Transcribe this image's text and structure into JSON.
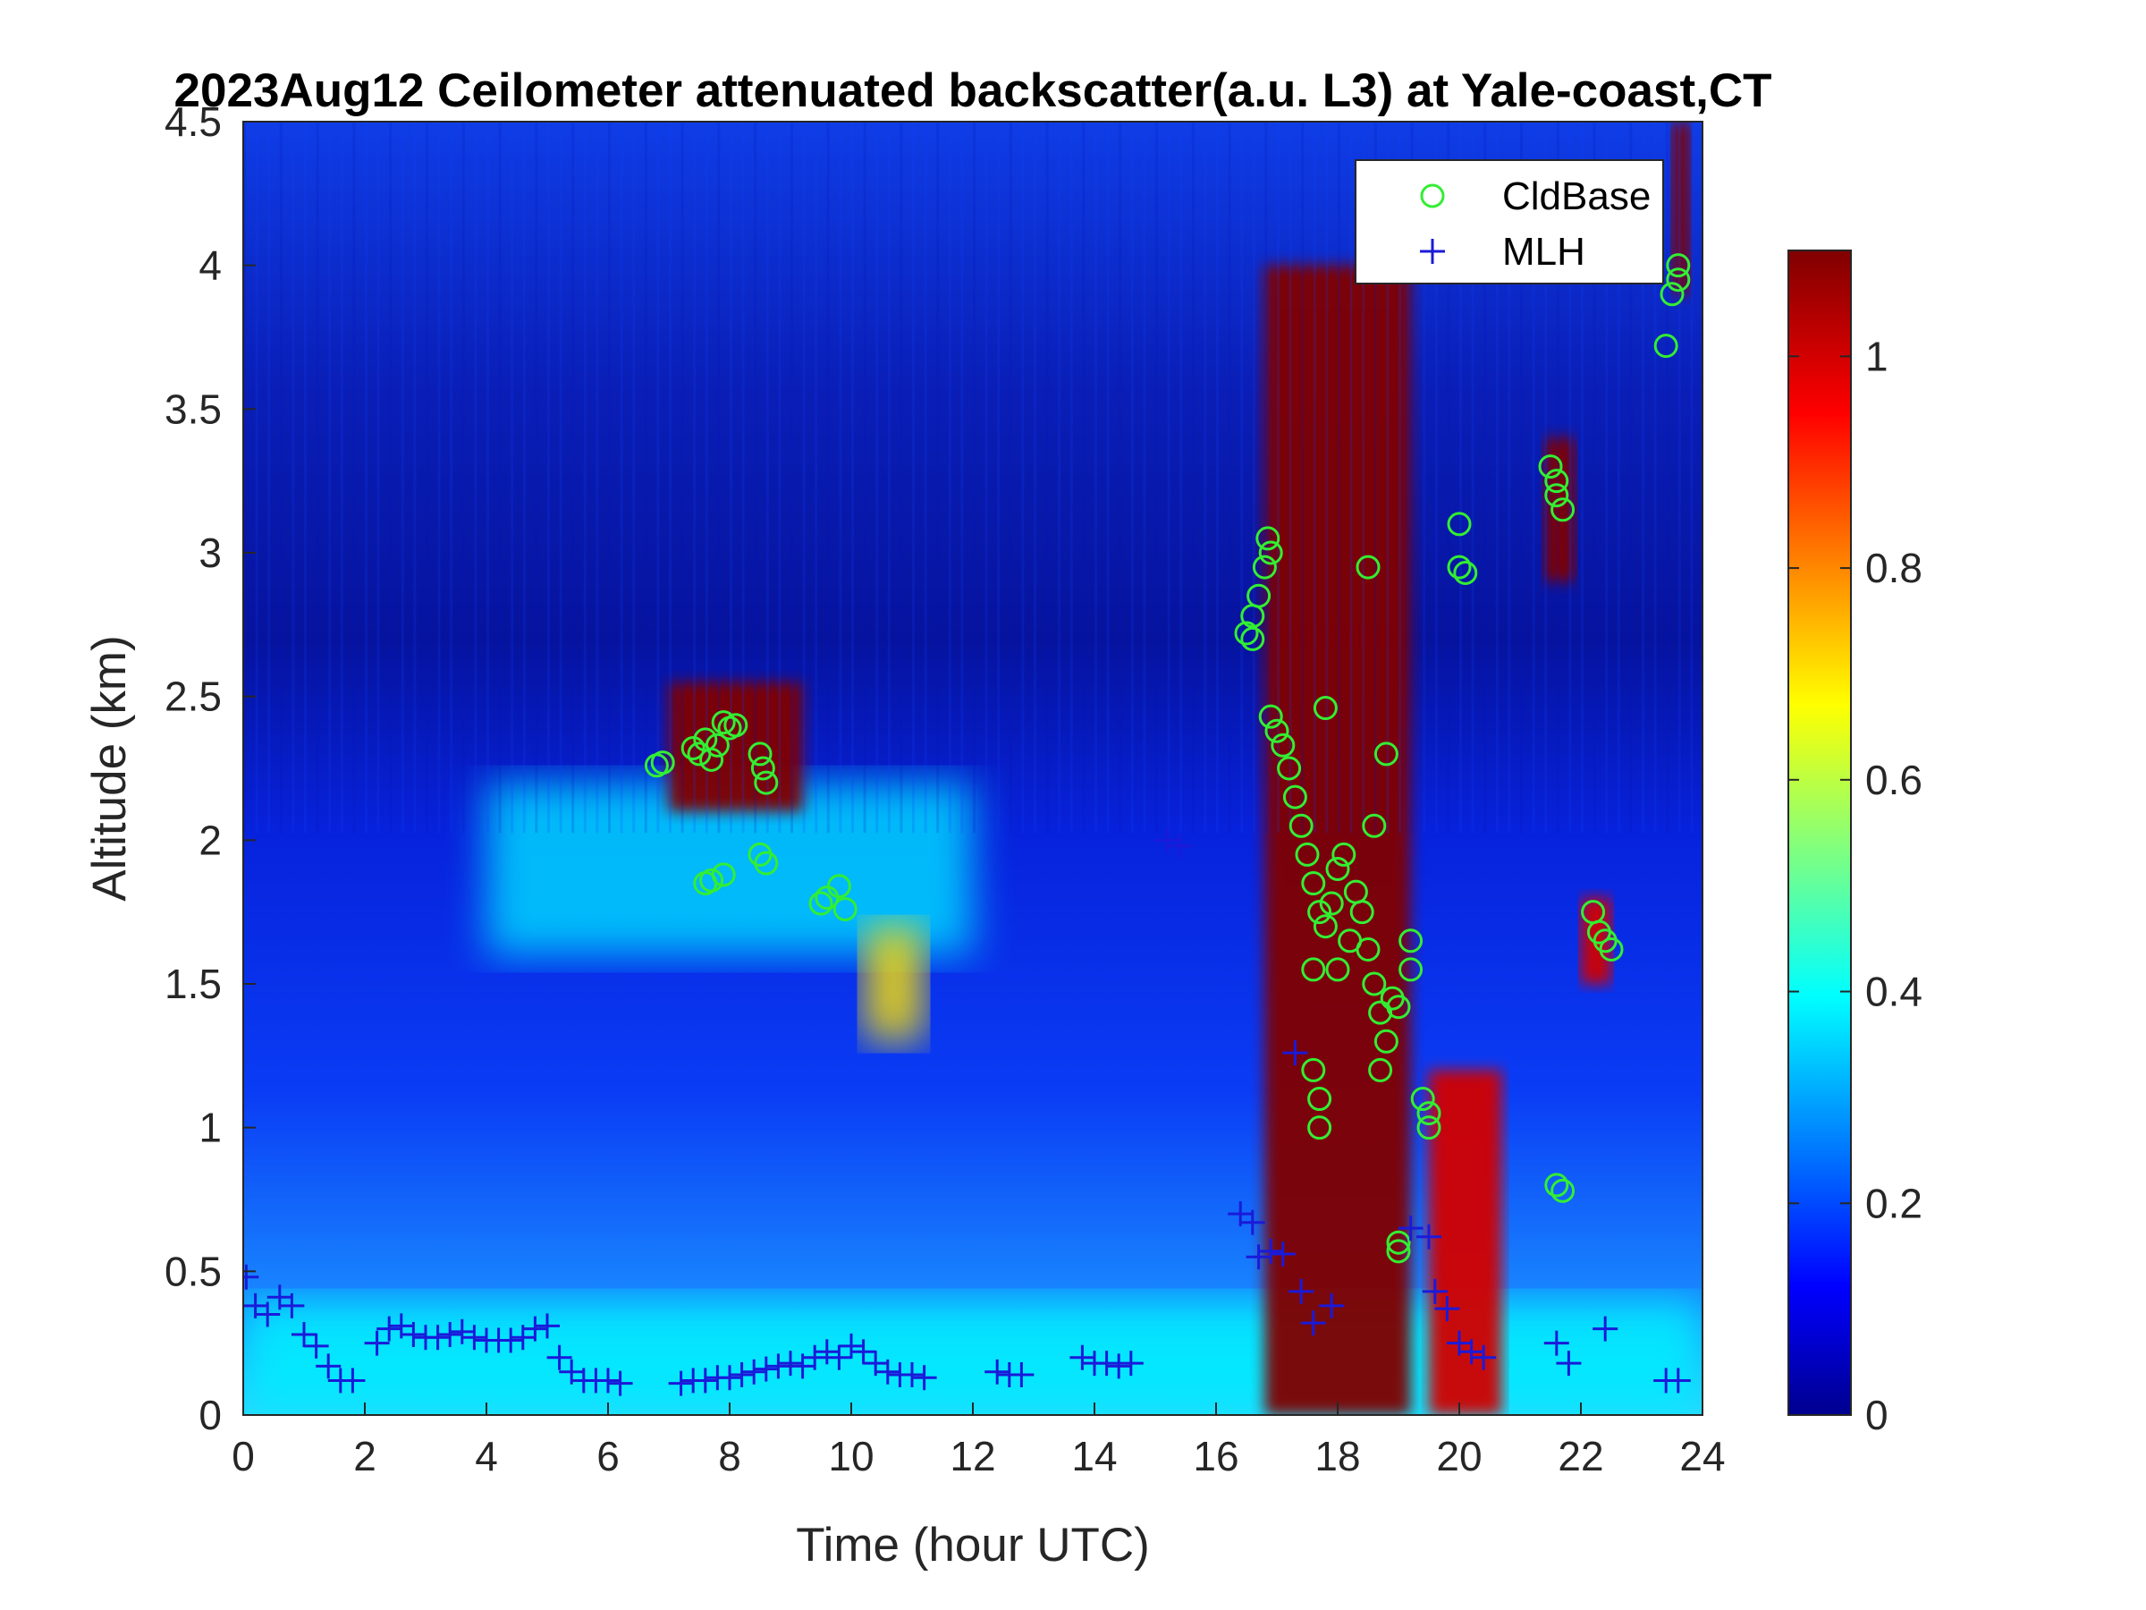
{
  "chart_data": {
    "type": "heatmap",
    "title": "2023Aug12 Ceilometer attenuated backscatter(a.u. L3) at Yale-coast,CT",
    "xlabel": "Time (hour UTC)",
    "ylabel": "Altitude (km)",
    "xlim": [
      0,
      24
    ],
    "ylim": [
      0,
      4.5
    ],
    "xticks": [
      0,
      2,
      4,
      6,
      8,
      10,
      12,
      14,
      16,
      18,
      20,
      22,
      24
    ],
    "yticks": [
      0,
      0.5,
      1,
      1.5,
      2,
      2.5,
      3,
      3.5,
      4,
      4.5
    ],
    "colorbar": {
      "colormap": "jet",
      "clim": [
        0,
        1.1
      ],
      "ticks": [
        0,
        0.2,
        0.4,
        0.6,
        0.8,
        1
      ],
      "colors": [
        "#00008f",
        "#0000ff",
        "#00ffff",
        "#ffff00",
        "#ff0000",
        "#800000"
      ]
    },
    "legend": {
      "placement": "top-right",
      "entries": [
        {
          "label": "CldBase",
          "marker": "circle",
          "color": "#33ee33"
        },
        {
          "label": "MLH",
          "marker": "plus",
          "color": "#1a1ad9"
        }
      ]
    },
    "backscatter_features": [
      {
        "kind": "surface_layer",
        "x_range": [
          0,
          24
        ],
        "alt_top_km": 0.4,
        "value": 0.38
      },
      {
        "kind": "residual_layer",
        "x_range": [
          4,
          12
        ],
        "alt_range_km": [
          1.6,
          2.2
        ],
        "value": 0.35
      },
      {
        "kind": "aerosol_plume",
        "x_range": [
          10.2,
          11.2
        ],
        "alt_range_km": [
          1.3,
          1.7
        ],
        "value": 0.7
      },
      {
        "kind": "cloud",
        "x_range": [
          7.0,
          9.2
        ],
        "alt_range_km": [
          2.1,
          2.55
        ],
        "value": 1.1
      },
      {
        "kind": "cloud",
        "x_range": [
          16.8,
          19.2
        ],
        "alt_range_km": [
          0.0,
          4.0
        ],
        "value": 1.1
      },
      {
        "kind": "cloud",
        "x_range": [
          19.5,
          20.7
        ],
        "alt_range_km": [
          0.0,
          1.2
        ],
        "value": 1.0
      },
      {
        "kind": "cloud",
        "x_range": [
          21.4,
          21.9
        ],
        "alt_range_km": [
          2.9,
          3.4
        ],
        "value": 1.1
      },
      {
        "kind": "cloud",
        "x_range": [
          22.0,
          22.5
        ],
        "alt_range_km": [
          1.5,
          1.8
        ],
        "value": 1.0
      },
      {
        "kind": "cloud",
        "x_range": [
          23.5,
          23.8
        ],
        "alt_range_km": [
          3.9,
          4.5
        ],
        "value": 1.1
      }
    ],
    "series": [
      {
        "name": "CldBase",
        "points": [
          [
            6.8,
            2.26
          ],
          [
            6.9,
            2.27
          ],
          [
            7.4,
            2.32
          ],
          [
            7.5,
            2.3
          ],
          [
            7.6,
            2.35
          ],
          [
            7.7,
            2.28
          ],
          [
            7.8,
            2.33
          ],
          [
            7.9,
            2.41
          ],
          [
            8.0,
            2.39
          ],
          [
            8.1,
            2.4
          ],
          [
            7.6,
            1.85
          ],
          [
            7.7,
            1.86
          ],
          [
            7.9,
            1.88
          ],
          [
            8.5,
            2.3
          ],
          [
            8.55,
            2.25
          ],
          [
            8.6,
            2.2
          ],
          [
            8.5,
            1.95
          ],
          [
            8.6,
            1.92
          ],
          [
            9.5,
            1.78
          ],
          [
            9.6,
            1.8
          ],
          [
            9.8,
            1.84
          ],
          [
            9.9,
            1.76
          ],
          [
            16.5,
            2.72
          ],
          [
            16.6,
            2.78
          ],
          [
            16.7,
            2.85
          ],
          [
            16.8,
            2.95
          ],
          [
            16.85,
            3.05
          ],
          [
            16.9,
            3.0
          ],
          [
            16.6,
            2.7
          ],
          [
            16.9,
            2.43
          ],
          [
            17.0,
            2.38
          ],
          [
            17.1,
            2.33
          ],
          [
            17.2,
            2.25
          ],
          [
            17.3,
            2.15
          ],
          [
            17.4,
            2.05
          ],
          [
            17.5,
            1.95
          ],
          [
            17.6,
            1.85
          ],
          [
            17.7,
            1.75
          ],
          [
            17.8,
            1.7
          ],
          [
            17.9,
            1.78
          ],
          [
            18.0,
            1.9
          ],
          [
            18.1,
            1.95
          ],
          [
            17.6,
            1.55
          ],
          [
            17.6,
            1.2
          ],
          [
            17.7,
            1.1
          ],
          [
            17.7,
            1.0
          ],
          [
            17.8,
            2.46
          ],
          [
            18.0,
            1.55
          ],
          [
            18.2,
            1.65
          ],
          [
            18.3,
            1.82
          ],
          [
            18.4,
            1.75
          ],
          [
            18.5,
            1.62
          ],
          [
            18.6,
            1.5
          ],
          [
            18.7,
            1.4
          ],
          [
            18.8,
            1.3
          ],
          [
            18.7,
            1.2
          ],
          [
            18.9,
            1.45
          ],
          [
            19.0,
            1.42
          ],
          [
            19.2,
            1.55
          ],
          [
            19.2,
            1.65
          ],
          [
            18.5,
            2.95
          ],
          [
            18.6,
            2.05
          ],
          [
            18.8,
            2.3
          ],
          [
            19.0,
            0.6
          ],
          [
            19.0,
            0.57
          ],
          [
            19.4,
            1.1
          ],
          [
            19.5,
            1.05
          ],
          [
            19.5,
            1.0
          ],
          [
            20.0,
            3.1
          ],
          [
            20.0,
            2.95
          ],
          [
            20.1,
            2.93
          ],
          [
            21.5,
            3.3
          ],
          [
            21.6,
            3.25
          ],
          [
            21.6,
            3.2
          ],
          [
            21.7,
            3.15
          ],
          [
            21.6,
            0.8
          ],
          [
            21.7,
            0.78
          ],
          [
            22.2,
            1.75
          ],
          [
            22.3,
            1.68
          ],
          [
            22.4,
            1.65
          ],
          [
            22.5,
            1.62
          ],
          [
            23.4,
            3.72
          ],
          [
            23.5,
            3.9
          ],
          [
            23.6,
            3.95
          ],
          [
            23.6,
            4.0
          ]
        ]
      },
      {
        "name": "MLH",
        "points": [
          [
            0.05,
            0.48
          ],
          [
            0.2,
            0.38
          ],
          [
            0.4,
            0.35
          ],
          [
            0.6,
            0.41
          ],
          [
            0.8,
            0.38
          ],
          [
            1.0,
            0.28
          ],
          [
            1.2,
            0.24
          ],
          [
            1.4,
            0.17
          ],
          [
            1.6,
            0.12
          ],
          [
            1.8,
            0.12
          ],
          [
            2.2,
            0.25
          ],
          [
            2.4,
            0.3
          ],
          [
            2.6,
            0.31
          ],
          [
            2.8,
            0.28
          ],
          [
            3.0,
            0.27
          ],
          [
            3.2,
            0.27
          ],
          [
            3.4,
            0.28
          ],
          [
            3.6,
            0.29
          ],
          [
            3.8,
            0.27
          ],
          [
            4.0,
            0.26
          ],
          [
            4.2,
            0.26
          ],
          [
            4.4,
            0.26
          ],
          [
            4.6,
            0.27
          ],
          [
            4.8,
            0.3
          ],
          [
            5.0,
            0.31
          ],
          [
            5.2,
            0.2
          ],
          [
            5.4,
            0.15
          ],
          [
            5.6,
            0.12
          ],
          [
            5.8,
            0.12
          ],
          [
            6.0,
            0.12
          ],
          [
            6.2,
            0.11
          ],
          [
            7.2,
            0.11
          ],
          [
            7.4,
            0.12
          ],
          [
            7.6,
            0.12
          ],
          [
            7.8,
            0.13
          ],
          [
            8.0,
            0.13
          ],
          [
            8.2,
            0.14
          ],
          [
            8.4,
            0.15
          ],
          [
            8.6,
            0.16
          ],
          [
            8.8,
            0.17
          ],
          [
            9.0,
            0.18
          ],
          [
            9.2,
            0.17
          ],
          [
            9.4,
            0.2
          ],
          [
            9.6,
            0.22
          ],
          [
            9.8,
            0.2
          ],
          [
            10.0,
            0.24
          ],
          [
            10.2,
            0.22
          ],
          [
            10.4,
            0.18
          ],
          [
            10.6,
            0.15
          ],
          [
            10.8,
            0.14
          ],
          [
            11.0,
            0.14
          ],
          [
            11.2,
            0.13
          ],
          [
            12.4,
            0.15
          ],
          [
            12.6,
            0.14
          ],
          [
            12.8,
            0.14
          ],
          [
            13.8,
            0.2
          ],
          [
            14.0,
            0.18
          ],
          [
            14.2,
            0.18
          ],
          [
            14.4,
            0.17
          ],
          [
            14.6,
            0.18
          ],
          [
            15.2,
            2.0
          ],
          [
            15.4,
            1.98
          ],
          [
            16.4,
            0.7
          ],
          [
            16.6,
            0.67
          ],
          [
            16.7,
            0.55
          ],
          [
            16.9,
            0.57
          ],
          [
            17.1,
            0.56
          ],
          [
            17.3,
            1.26
          ],
          [
            17.4,
            0.43
          ],
          [
            17.6,
            0.32
          ],
          [
            17.9,
            0.38
          ],
          [
            19.2,
            0.65
          ],
          [
            19.5,
            0.62
          ],
          [
            19.6,
            0.43
          ],
          [
            19.8,
            0.37
          ],
          [
            20.0,
            0.25
          ],
          [
            20.2,
            0.22
          ],
          [
            20.4,
            0.2
          ],
          [
            21.6,
            0.25
          ],
          [
            21.8,
            0.18
          ],
          [
            22.4,
            0.3
          ],
          [
            23.4,
            0.12
          ],
          [
            23.6,
            0.12
          ]
        ]
      }
    ]
  }
}
